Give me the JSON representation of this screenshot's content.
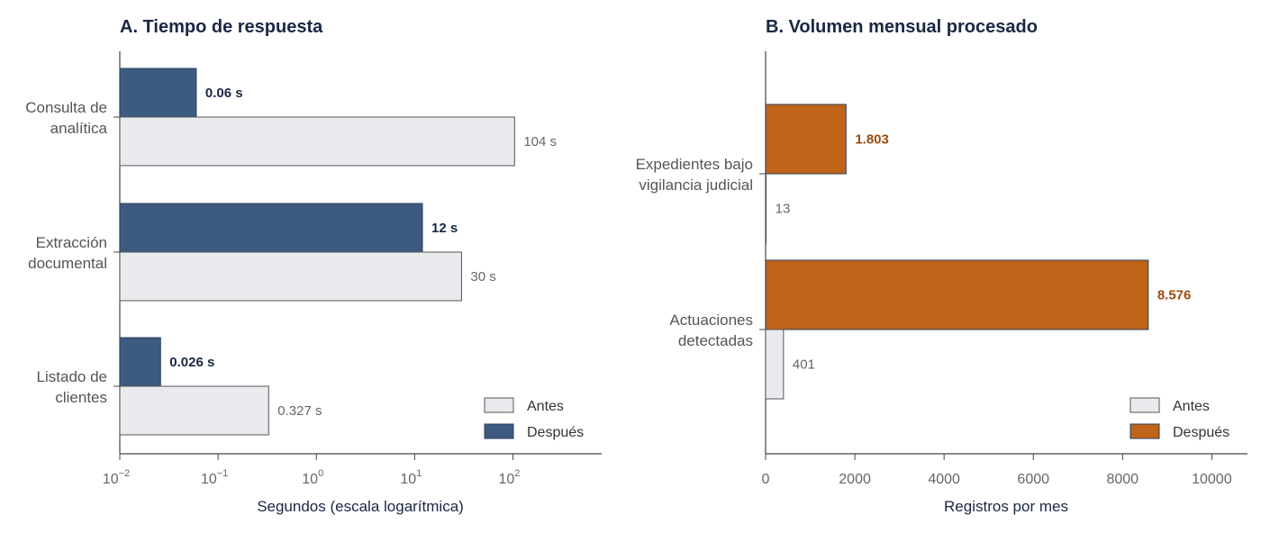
{
  "chart_data": [
    {
      "type": "bar",
      "orientation": "horizontal",
      "title": "A. Tiempo de respuesta",
      "xlabel": "Segundos (escala logarítmica)",
      "ylabel": "",
      "xscale": "log",
      "xlim": [
        0.01,
        800
      ],
      "xticks": [
        {
          "value": 0.01,
          "base": "10",
          "exp": "−2"
        },
        {
          "value": 0.1,
          "base": "10",
          "exp": "−1"
        },
        {
          "value": 1,
          "base": "10",
          "exp": "0"
        },
        {
          "value": 10,
          "base": "10",
          "exp": "1"
        },
        {
          "value": 100,
          "base": "10",
          "exp": "2"
        }
      ],
      "categories": [
        {
          "lines": [
            "Consulta de",
            "analítica"
          ]
        },
        {
          "lines": [
            "Extracción",
            "documental"
          ]
        },
        {
          "lines": [
            "Listado de",
            "clientes"
          ]
        }
      ],
      "series": [
        {
          "name": "Después",
          "color": "#3d5a80",
          "values": [
            0.06,
            12,
            0.026
          ],
          "labels": [
            "0.06 s",
            "12 s",
            "0.026 s"
          ]
        },
        {
          "name": "Antes",
          "color": "#e8eaed",
          "values": [
            104,
            30,
            0.327
          ],
          "labels": [
            "104 s",
            "30 s",
            "0.327 s"
          ]
        }
      ],
      "legend": {
        "position": "bottom-right",
        "entries": [
          "Antes",
          "Después"
        ]
      },
      "grid": false
    },
    {
      "type": "bar",
      "orientation": "horizontal",
      "title": "B. Volumen mensual procesado",
      "xlabel": "Registros por mes",
      "ylabel": "",
      "xscale": "linear",
      "xlim": [
        0,
        10800
      ],
      "xticks": [
        {
          "value": 0,
          "label": "0"
        },
        {
          "value": 2000,
          "label": "2000"
        },
        {
          "value": 4000,
          "label": "4000"
        },
        {
          "value": 6000,
          "label": "6000"
        },
        {
          "value": 8000,
          "label": "8000"
        },
        {
          "value": 10000,
          "label": "10000"
        }
      ],
      "categories": [
        {
          "lines": [
            "Expedientes bajo",
            "vigilancia judicial"
          ]
        },
        {
          "lines": [
            "Actuaciones",
            "detectadas"
          ]
        }
      ],
      "series": [
        {
          "name": "Después",
          "color": "#c0641a",
          "values": [
            1803,
            8576
          ],
          "labels": [
            "1.803",
            "8.576"
          ]
        },
        {
          "name": "Antes",
          "color": "#e8eaed",
          "values": [
            13,
            401
          ],
          "labels": [
            "13",
            "401"
          ]
        }
      ],
      "legend": {
        "position": "bottom-right",
        "entries": [
          "Antes",
          "Después"
        ]
      },
      "grid": false
    }
  ]
}
